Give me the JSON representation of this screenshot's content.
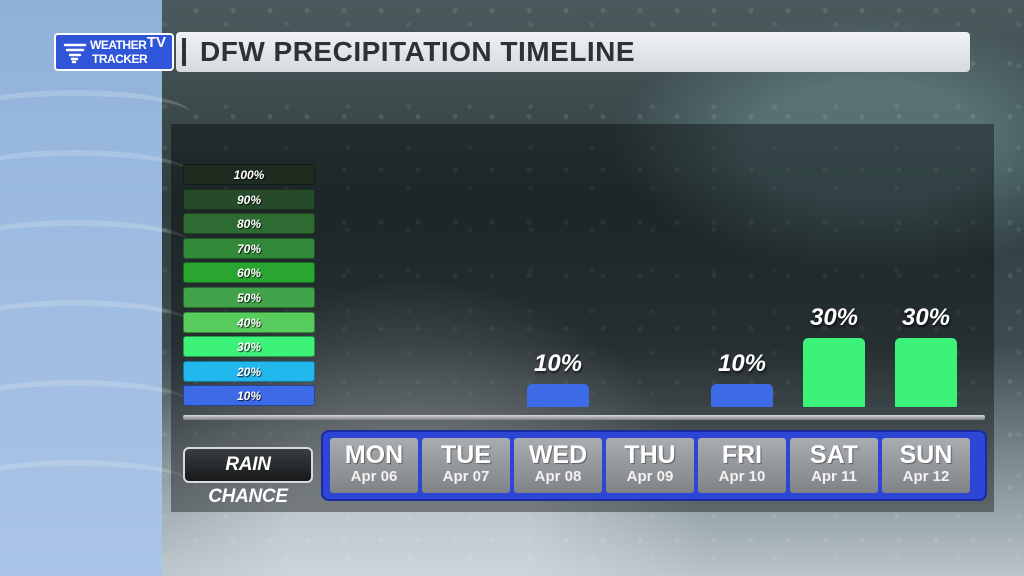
{
  "logo": {
    "line1": "WEATHER",
    "line2": "TRACKER",
    "badge": "TV"
  },
  "title": "DFW PRECIPITATION TIMELINE",
  "legend": [
    "100%",
    "90%",
    "80%",
    "70%",
    "60%",
    "50%",
    "40%",
    "30%",
    "20%",
    "10%"
  ],
  "legend_colors": [
    "#1e2b1f",
    "#274a2a",
    "#2d6b32",
    "#33893a",
    "#29a631",
    "#42a44a",
    "#58cc5c",
    "#3cf278",
    "#22b8ee",
    "#3d6ae6"
  ],
  "rain_chance_label": "RAIN CHANCE",
  "chart_data": {
    "type": "bar",
    "categories": [
      "MON",
      "TUE",
      "WED",
      "THU",
      "FRI",
      "SAT",
      "SUN"
    ],
    "dates": [
      "Apr 06",
      "Apr 07",
      "Apr 08",
      "Apr 09",
      "Apr 10",
      "Apr 11",
      "Apr 12"
    ],
    "values": [
      0,
      0,
      10,
      0,
      10,
      30,
      30
    ],
    "value_labels": [
      "",
      "",
      "10%",
      "",
      "10%",
      "30%",
      "30%"
    ],
    "ylabel": "",
    "ylim": [
      0,
      100
    ],
    "bar_colors": {
      "10": "#3d6ae6",
      "30": "#3cf278"
    }
  }
}
